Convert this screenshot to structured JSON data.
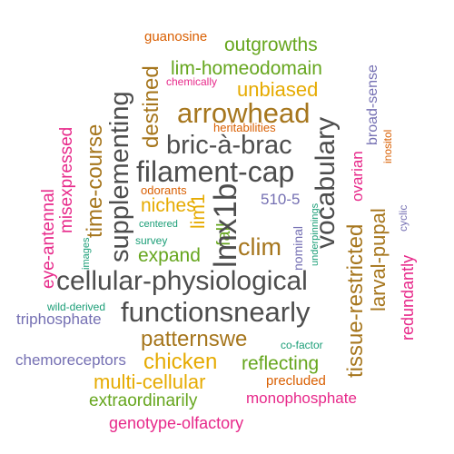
{
  "palette": {
    "charcoal": "#4d4d4d",
    "brown": "#a6761d",
    "green": "#66a61e",
    "pink": "#e7298a",
    "orange": "#d95f02",
    "purple": "#7570b3",
    "gold": "#e6ab02",
    "teal": "#1b9e77"
  },
  "words": {
    "guanosine": "guanosine",
    "outgrowths": "outgrowths",
    "chemically": "chemically",
    "lim_homeodomain": "lim-homeodomain",
    "unbiased": "unbiased",
    "arrowhead": "arrowhead",
    "heritabilities": "heritabilities",
    "bric_a_brac": "bric-à-brac",
    "filament_cap": "filament-cap",
    "odorants": "odorants",
    "niches": "niches",
    "centered": "centered",
    "survey": "survey",
    "expand": "expand",
    "clim": "clim",
    "cellular_physiological": "cellular-physiological",
    "wild_derived": "wild-derived",
    "functionsnearly": "functionsnearly",
    "triphosphate": "triphosphate",
    "patternswe": "patternswe",
    "co_factor": "co-factor",
    "chemoreceptors": "chemoreceptors",
    "chicken": "chicken",
    "reflecting": "reflecting",
    "multi_cellular": "multi-cellular",
    "precluded": "precluded",
    "extraordinarily": "extraordinarily",
    "monophosphate": "monophosphate",
    "genotype_olfactory": "genotype-olfactory",
    "eye_antennal": "eye-antennal",
    "misexpressed": "misexpressed",
    "images": "images",
    "time_course": "time-course",
    "supplementing": "supplementing",
    "destined": "destined",
    "lim1": "lim1",
    "fall": "fall",
    "lmx1b": "lmx1b",
    "five_ten": "510-5",
    "nominal": "nominal",
    "underpinnings": "underpinnings",
    "vocabulary": "vocabulary",
    "tissue_restricted": "tissue-restricted",
    "larval_pupal": "larval-pupal",
    "ovarian": "ovarian",
    "broad_sense": "broad-sense",
    "inositol": "inositol",
    "cyclic": "cyclic",
    "redundantly": "redundantly"
  }
}
